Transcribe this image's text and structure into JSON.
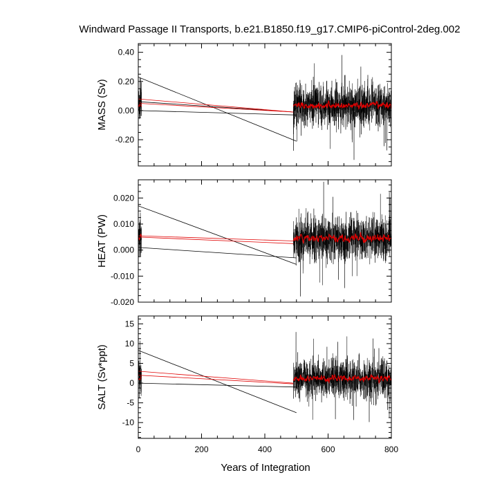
{
  "title": "Windward Passage II Transports, b.e21.B1850.f19_g17.CMIP6-piControl-2deg.002",
  "xlabel": "Years of Integration",
  "colors": {
    "raw": "#000000",
    "smoothed": "#e00000",
    "frame": "#000000"
  },
  "chart_data": [
    {
      "type": "line",
      "ylabel": "MASS (Sv)",
      "xlim": [
        0,
        800
      ],
      "ylim": [
        -0.38,
        0.46
      ],
      "xticks": [
        0,
        200,
        400,
        600,
        800
      ],
      "yticks": [
        -0.2,
        0.0,
        0.2,
        0.4
      ],
      "ytick_labels": [
        "-0.20",
        "0.00",
        "0.20",
        "0.40"
      ],
      "noise": {
        "raw_mean": 0.035,
        "raw_amp": 0.1,
        "raw_clip": [
          -0.38,
          0.45
        ],
        "smooth_mean": 0.035,
        "smooth_amp": 0.02
      },
      "series": [
        {
          "x": [
            0,
            10,
            490,
            500
          ],
          "y": [
            0.0,
            0.06,
            -0.01,
            0.02
          ]
        },
        {
          "x": [
            0,
            500
          ],
          "y": [
            0.23,
            -0.21
          ]
        },
        {
          "x": [
            0,
            500
          ],
          "y": [
            0.0,
            -0.03
          ]
        },
        {
          "x": [
            0,
            490
          ],
          "y": [
            0.08,
            -0.01
          ]
        },
        {
          "x": [
            0,
            490
          ],
          "y": [
            0.05,
            -0.01
          ]
        }
      ]
    },
    {
      "type": "line",
      "ylabel": "HEAT (PW)",
      "xlim": [
        0,
        800
      ],
      "ylim": [
        -0.02,
        0.027
      ],
      "xticks": [
        0,
        200,
        400,
        600,
        800
      ],
      "yticks": [
        -0.02,
        -0.01,
        0.0,
        0.01,
        0.02
      ],
      "ytick_labels": [
        "-0.020",
        "-0.010",
        "0.000",
        "0.010",
        "0.020"
      ],
      "noise": {
        "raw_mean": 0.0045,
        "raw_amp": 0.006,
        "raw_clip": [
          -0.02,
          0.027
        ],
        "smooth_mean": 0.0045,
        "smooth_amp": 0.0012
      },
      "series": [
        {
          "x": [
            0,
            500
          ],
          "y": [
            0.017,
            -0.0055
          ]
        },
        {
          "x": [
            0,
            500
          ],
          "y": [
            0.001,
            -0.003
          ]
        },
        {
          "x": [
            0,
            490
          ],
          "y": [
            0.0055,
            0.0035
          ]
        },
        {
          "x": [
            0,
            490
          ],
          "y": [
            0.005,
            0.0025
          ]
        }
      ]
    },
    {
      "type": "line",
      "ylabel": "SALT (Sv*ppt)",
      "xlim": [
        0,
        800
      ],
      "ylim": [
        -14,
        17
      ],
      "xticks": [
        0,
        200,
        400,
        600,
        800
      ],
      "xtick_labels": [
        "0",
        "200",
        "400",
        "600",
        "800"
      ],
      "yticks": [
        -10,
        -5,
        0,
        5,
        10,
        15
      ],
      "ytick_labels": [
        "-10",
        "-5",
        "0",
        "5",
        "10",
        "15"
      ],
      "noise": {
        "raw_mean": 1.2,
        "raw_amp": 3.5,
        "raw_clip": [
          -14,
          16
        ],
        "smooth_mean": 1.2,
        "smooth_amp": 0.7
      },
      "series": [
        {
          "x": [
            0,
            500
          ],
          "y": [
            8.3,
            -7.5
          ]
        },
        {
          "x": [
            0,
            500
          ],
          "y": [
            0.0,
            -1.0
          ]
        },
        {
          "x": [
            0,
            490
          ],
          "y": [
            3.0,
            0.0
          ]
        },
        {
          "x": [
            0,
            490
          ],
          "y": [
            2.0,
            -0.2
          ]
        }
      ]
    }
  ]
}
